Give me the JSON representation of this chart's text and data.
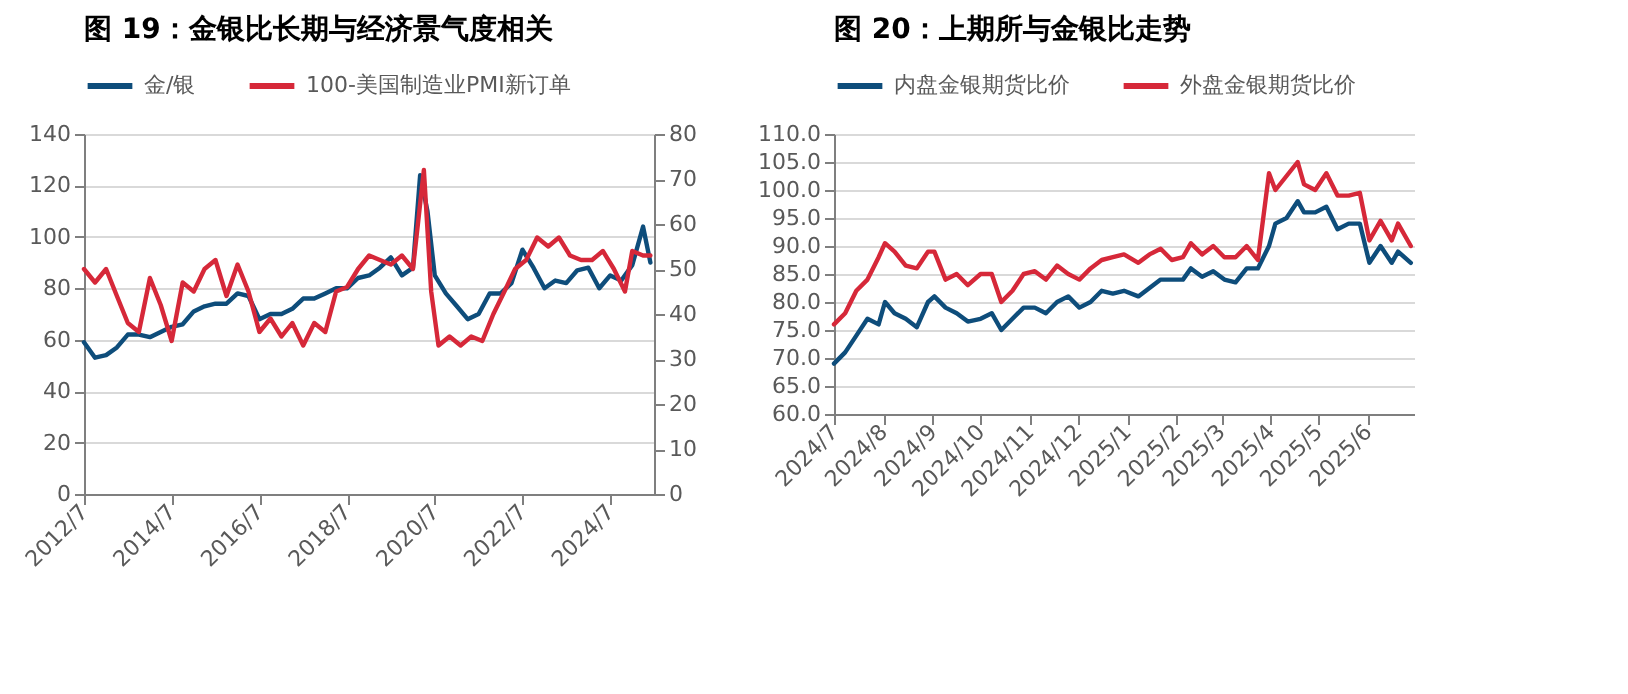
{
  "chart_data": [
    {
      "type": "line",
      "title": "图 19：金银比长期与经济景气度相关",
      "legend": "top",
      "grid": "y",
      "marker": "none",
      "line_style": "solid",
      "xlim": [
        "2012-07",
        "2025-07"
      ],
      "xticks": [
        {
          "value": "2012-07",
          "label": "2012/7"
        },
        {
          "value": "2014-07",
          "label": "2014/7"
        },
        {
          "value": "2016-07",
          "label": "2016/7"
        },
        {
          "value": "2018-07",
          "label": "2018/7"
        },
        {
          "value": "2020-07",
          "label": "2020/7"
        },
        {
          "value": "2022-07",
          "label": "2022/7"
        },
        {
          "value": "2024-07",
          "label": "2024/7"
        }
      ],
      "ylim": [
        0,
        140
      ],
      "yticks": [
        0,
        20,
        40,
        60,
        80,
        100,
        120,
        140
      ],
      "y2lim": [
        0,
        80
      ],
      "y2ticks": [
        0,
        10,
        20,
        30,
        40,
        50,
        60,
        70,
        80
      ],
      "series": [
        {
          "name": "金/银",
          "color": "#0e4d7b",
          "x": [
            "2012-07",
            "2012-10",
            "2013-01",
            "2013-04",
            "2013-07",
            "2013-10",
            "2014-01",
            "2014-04",
            "2014-07",
            "2014-10",
            "2015-01",
            "2015-04",
            "2015-07",
            "2015-10",
            "2016-01",
            "2016-04",
            "2016-07",
            "2016-10",
            "2017-01",
            "2017-04",
            "2017-07",
            "2017-10",
            "2018-01",
            "2018-04",
            "2018-07",
            "2018-10",
            "2019-01",
            "2019-04",
            "2019-07",
            "2019-10",
            "2020-01",
            "2020-03",
            "2020-05",
            "2020-07",
            "2020-10",
            "2021-01",
            "2021-04",
            "2021-07",
            "2021-10",
            "2022-01",
            "2022-04",
            "2022-07",
            "2022-10",
            "2023-01",
            "2023-04",
            "2023-07",
            "2023-10",
            "2024-01",
            "2024-04",
            "2024-07",
            "2024-10",
            "2025-01",
            "2025-04",
            "2025-06"
          ],
          "values": [
            59,
            53,
            54,
            57,
            62,
            62,
            61,
            63,
            65,
            66,
            71,
            73,
            74,
            74,
            78,
            77,
            68,
            70,
            70,
            72,
            76,
            76,
            78,
            80,
            80,
            84,
            85,
            88,
            92,
            85,
            88,
            124,
            110,
            85,
            78,
            73,
            68,
            70,
            78,
            78,
            82,
            95,
            88,
            80,
            83,
            82,
            87,
            88,
            80,
            85,
            83,
            89,
            104,
            90
          ]
        },
        {
          "name": "100-美国制造业PMI新订单",
          "color": "#d62839",
          "axis": "y2",
          "x": [
            "2012-07",
            "2012-10",
            "2013-01",
            "2013-04",
            "2013-07",
            "2013-10",
            "2014-01",
            "2014-04",
            "2014-07",
            "2014-10",
            "2015-01",
            "2015-04",
            "2015-07",
            "2015-10",
            "2016-01",
            "2016-04",
            "2016-07",
            "2016-10",
            "2017-01",
            "2017-04",
            "2017-07",
            "2017-10",
            "2018-01",
            "2018-04",
            "2018-07",
            "2018-10",
            "2019-01",
            "2019-04",
            "2019-07",
            "2019-10",
            "2020-01",
            "2020-04",
            "2020-06",
            "2020-08",
            "2020-11",
            "2021-02",
            "2021-05",
            "2021-08",
            "2021-11",
            "2022-02",
            "2022-05",
            "2022-08",
            "2022-11",
            "2023-02",
            "2023-05",
            "2023-08",
            "2023-11",
            "2024-02",
            "2024-05",
            "2024-08",
            "2024-11",
            "2025-01",
            "2025-04",
            "2025-06"
          ],
          "values": [
            50,
            47,
            50,
            44,
            38,
            36,
            48,
            42,
            34,
            47,
            45,
            50,
            52,
            44,
            51,
            45,
            36,
            39,
            35,
            38,
            33,
            38,
            36,
            45,
            46,
            50,
            53,
            52,
            51,
            53,
            50,
            72,
            45,
            33,
            35,
            33,
            35,
            34,
            40,
            45,
            50,
            52,
            57,
            55,
            57,
            53,
            52,
            52,
            54,
            50,
            45,
            54,
            53,
            53
          ]
        }
      ]
    },
    {
      "type": "line",
      "title": "图 20：上期所与金银比走势",
      "legend": "top",
      "grid": "y",
      "marker": "none",
      "line_style": "solid",
      "xlim": [
        "2024-07-01",
        "2025-06-30"
      ],
      "xticks": [
        {
          "value": "2024-07-01",
          "label": "2024/7"
        },
        {
          "value": "2024-08-01",
          "label": "2024/8"
        },
        {
          "value": "2024-09-01",
          "label": "2024/9"
        },
        {
          "value": "2024-10-01",
          "label": "2024/10"
        },
        {
          "value": "2024-11-01",
          "label": "2024/11"
        },
        {
          "value": "2024-12-01",
          "label": "2024/12"
        },
        {
          "value": "2025-01-01",
          "label": "2025/1"
        },
        {
          "value": "2025-02-01",
          "label": "2025/2"
        },
        {
          "value": "2025-03-01",
          "label": "2025/3"
        },
        {
          "value": "2025-04-01",
          "label": "2025/4"
        },
        {
          "value": "2025-05-01",
          "label": "2025/5"
        },
        {
          "value": "2025-06-01",
          "label": "2025/6"
        }
      ],
      "ylim": [
        60,
        110
      ],
      "yticks": [
        {
          "value": 60,
          "label": "60.0"
        },
        {
          "value": 65,
          "label": "65.0"
        },
        {
          "value": 70,
          "label": "70.0"
        },
        {
          "value": 75,
          "label": "75.0"
        },
        {
          "value": 80,
          "label": "80.0"
        },
        {
          "value": 85,
          "label": "85.0"
        },
        {
          "value": 90,
          "label": "90.0"
        },
        {
          "value": 95,
          "label": "95.0"
        },
        {
          "value": 100,
          "label": "100.0"
        },
        {
          "value": 105,
          "label": "105.0"
        },
        {
          "value": 110,
          "label": "110.0"
        }
      ],
      "x": [
        "2024-07-01",
        "2024-07-08",
        "2024-07-15",
        "2024-07-22",
        "2024-07-29",
        "2024-08-02",
        "2024-08-08",
        "2024-08-15",
        "2024-08-22",
        "2024-08-29",
        "2024-09-02",
        "2024-09-09",
        "2024-09-16",
        "2024-09-23",
        "2024-10-01",
        "2024-10-08",
        "2024-10-14",
        "2024-10-21",
        "2024-10-28",
        "2024-11-04",
        "2024-11-11",
        "2024-11-18",
        "2024-11-25",
        "2024-12-02",
        "2024-12-09",
        "2024-12-16",
        "2024-12-23",
        "2024-12-30",
        "2025-01-08",
        "2025-01-15",
        "2025-01-22",
        "2025-01-29",
        "2025-02-05",
        "2025-02-10",
        "2025-02-17",
        "2025-02-24",
        "2025-03-03",
        "2025-03-10",
        "2025-03-17",
        "2025-03-24",
        "2025-03-31",
        "2025-04-04",
        "2025-04-11",
        "2025-04-18",
        "2025-04-22",
        "2025-04-29",
        "2025-05-06",
        "2025-05-13",
        "2025-05-20",
        "2025-05-27",
        "2025-06-02",
        "2025-06-09",
        "2025-06-16",
        "2025-06-20",
        "2025-06-28"
      ],
      "series": [
        {
          "name": "内盘金银期货比价",
          "color": "#0e4d7b",
          "values": [
            69,
            71,
            74,
            77,
            76,
            80,
            78,
            77,
            75.5,
            80,
            81,
            79,
            78,
            76.5,
            77,
            78,
            75,
            77,
            79,
            79,
            78,
            80,
            81,
            79,
            80,
            82,
            81.5,
            82,
            81,
            82.5,
            84,
            84,
            84,
            86,
            84.5,
            85.5,
            84,
            83.5,
            86,
            86,
            90,
            94,
            95,
            98,
            96,
            96,
            97,
            93,
            94,
            94,
            87,
            90,
            87,
            89,
            87
          ]
        },
        {
          "name": "外盘金银期货比价",
          "color": "#d62839",
          "values": [
            76,
            78,
            82,
            84,
            88,
            90.5,
            89,
            86.5,
            86,
            89,
            89,
            84,
            85,
            83,
            85,
            85,
            80,
            82,
            85,
            85.5,
            84,
            86.5,
            85,
            84,
            86,
            87.5,
            88,
            88.5,
            87,
            88.5,
            89.5,
            87.5,
            88,
            90.5,
            88.5,
            90,
            88,
            88,
            90,
            87.5,
            103,
            100,
            102.5,
            105,
            101,
            100,
            103,
            99,
            99,
            99.5,
            91,
            94.5,
            91,
            94,
            90
          ]
        }
      ]
    }
  ]
}
